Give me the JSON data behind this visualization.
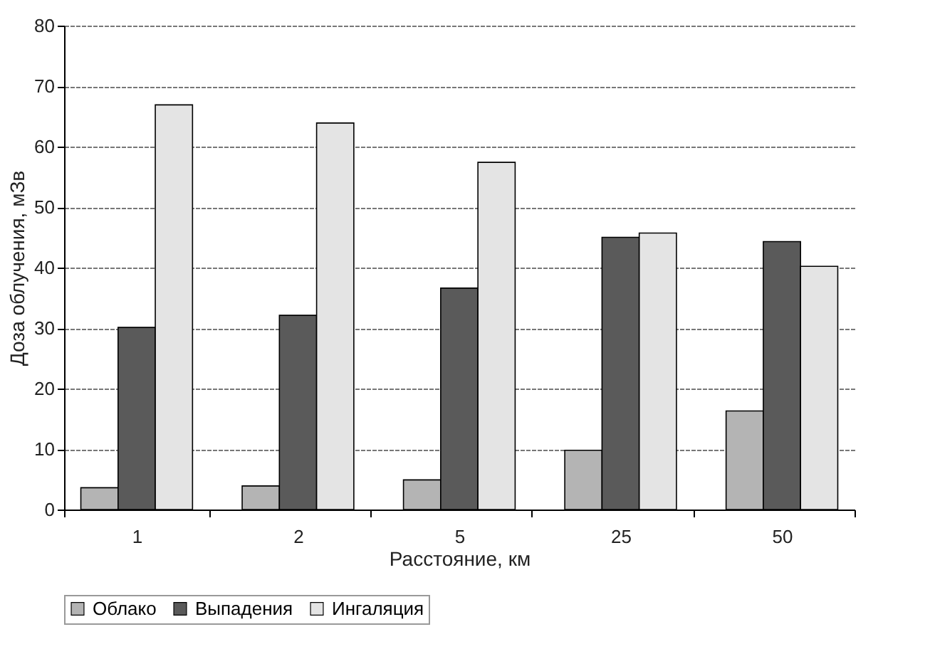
{
  "chart_data": {
    "type": "bar",
    "xlabel": "Расстояние, км",
    "ylabel": "Доза облучения, мЗв",
    "categories": [
      "1",
      "2",
      "5",
      "25",
      "50"
    ],
    "series": [
      {
        "name": "Облако",
        "color": "#b4b4b4",
        "values": [
          3.6,
          3.9,
          4.9,
          9.8,
          16.3
        ]
      },
      {
        "name": "Выпадения",
        "color": "#5a5a5a",
        "values": [
          30.1,
          32.1,
          36.6,
          45.0,
          44.3
        ]
      },
      {
        "name": "Ингаляция",
        "color": "#e4e4e4",
        "values": [
          66.9,
          63.9,
          57.4,
          45.7,
          40.2
        ]
      }
    ],
    "ylim": [
      0,
      80
    ],
    "yticks": [
      0,
      10,
      20,
      30,
      40,
      50,
      60,
      70,
      80
    ],
    "grid": "y",
    "legend": "bottom"
  }
}
